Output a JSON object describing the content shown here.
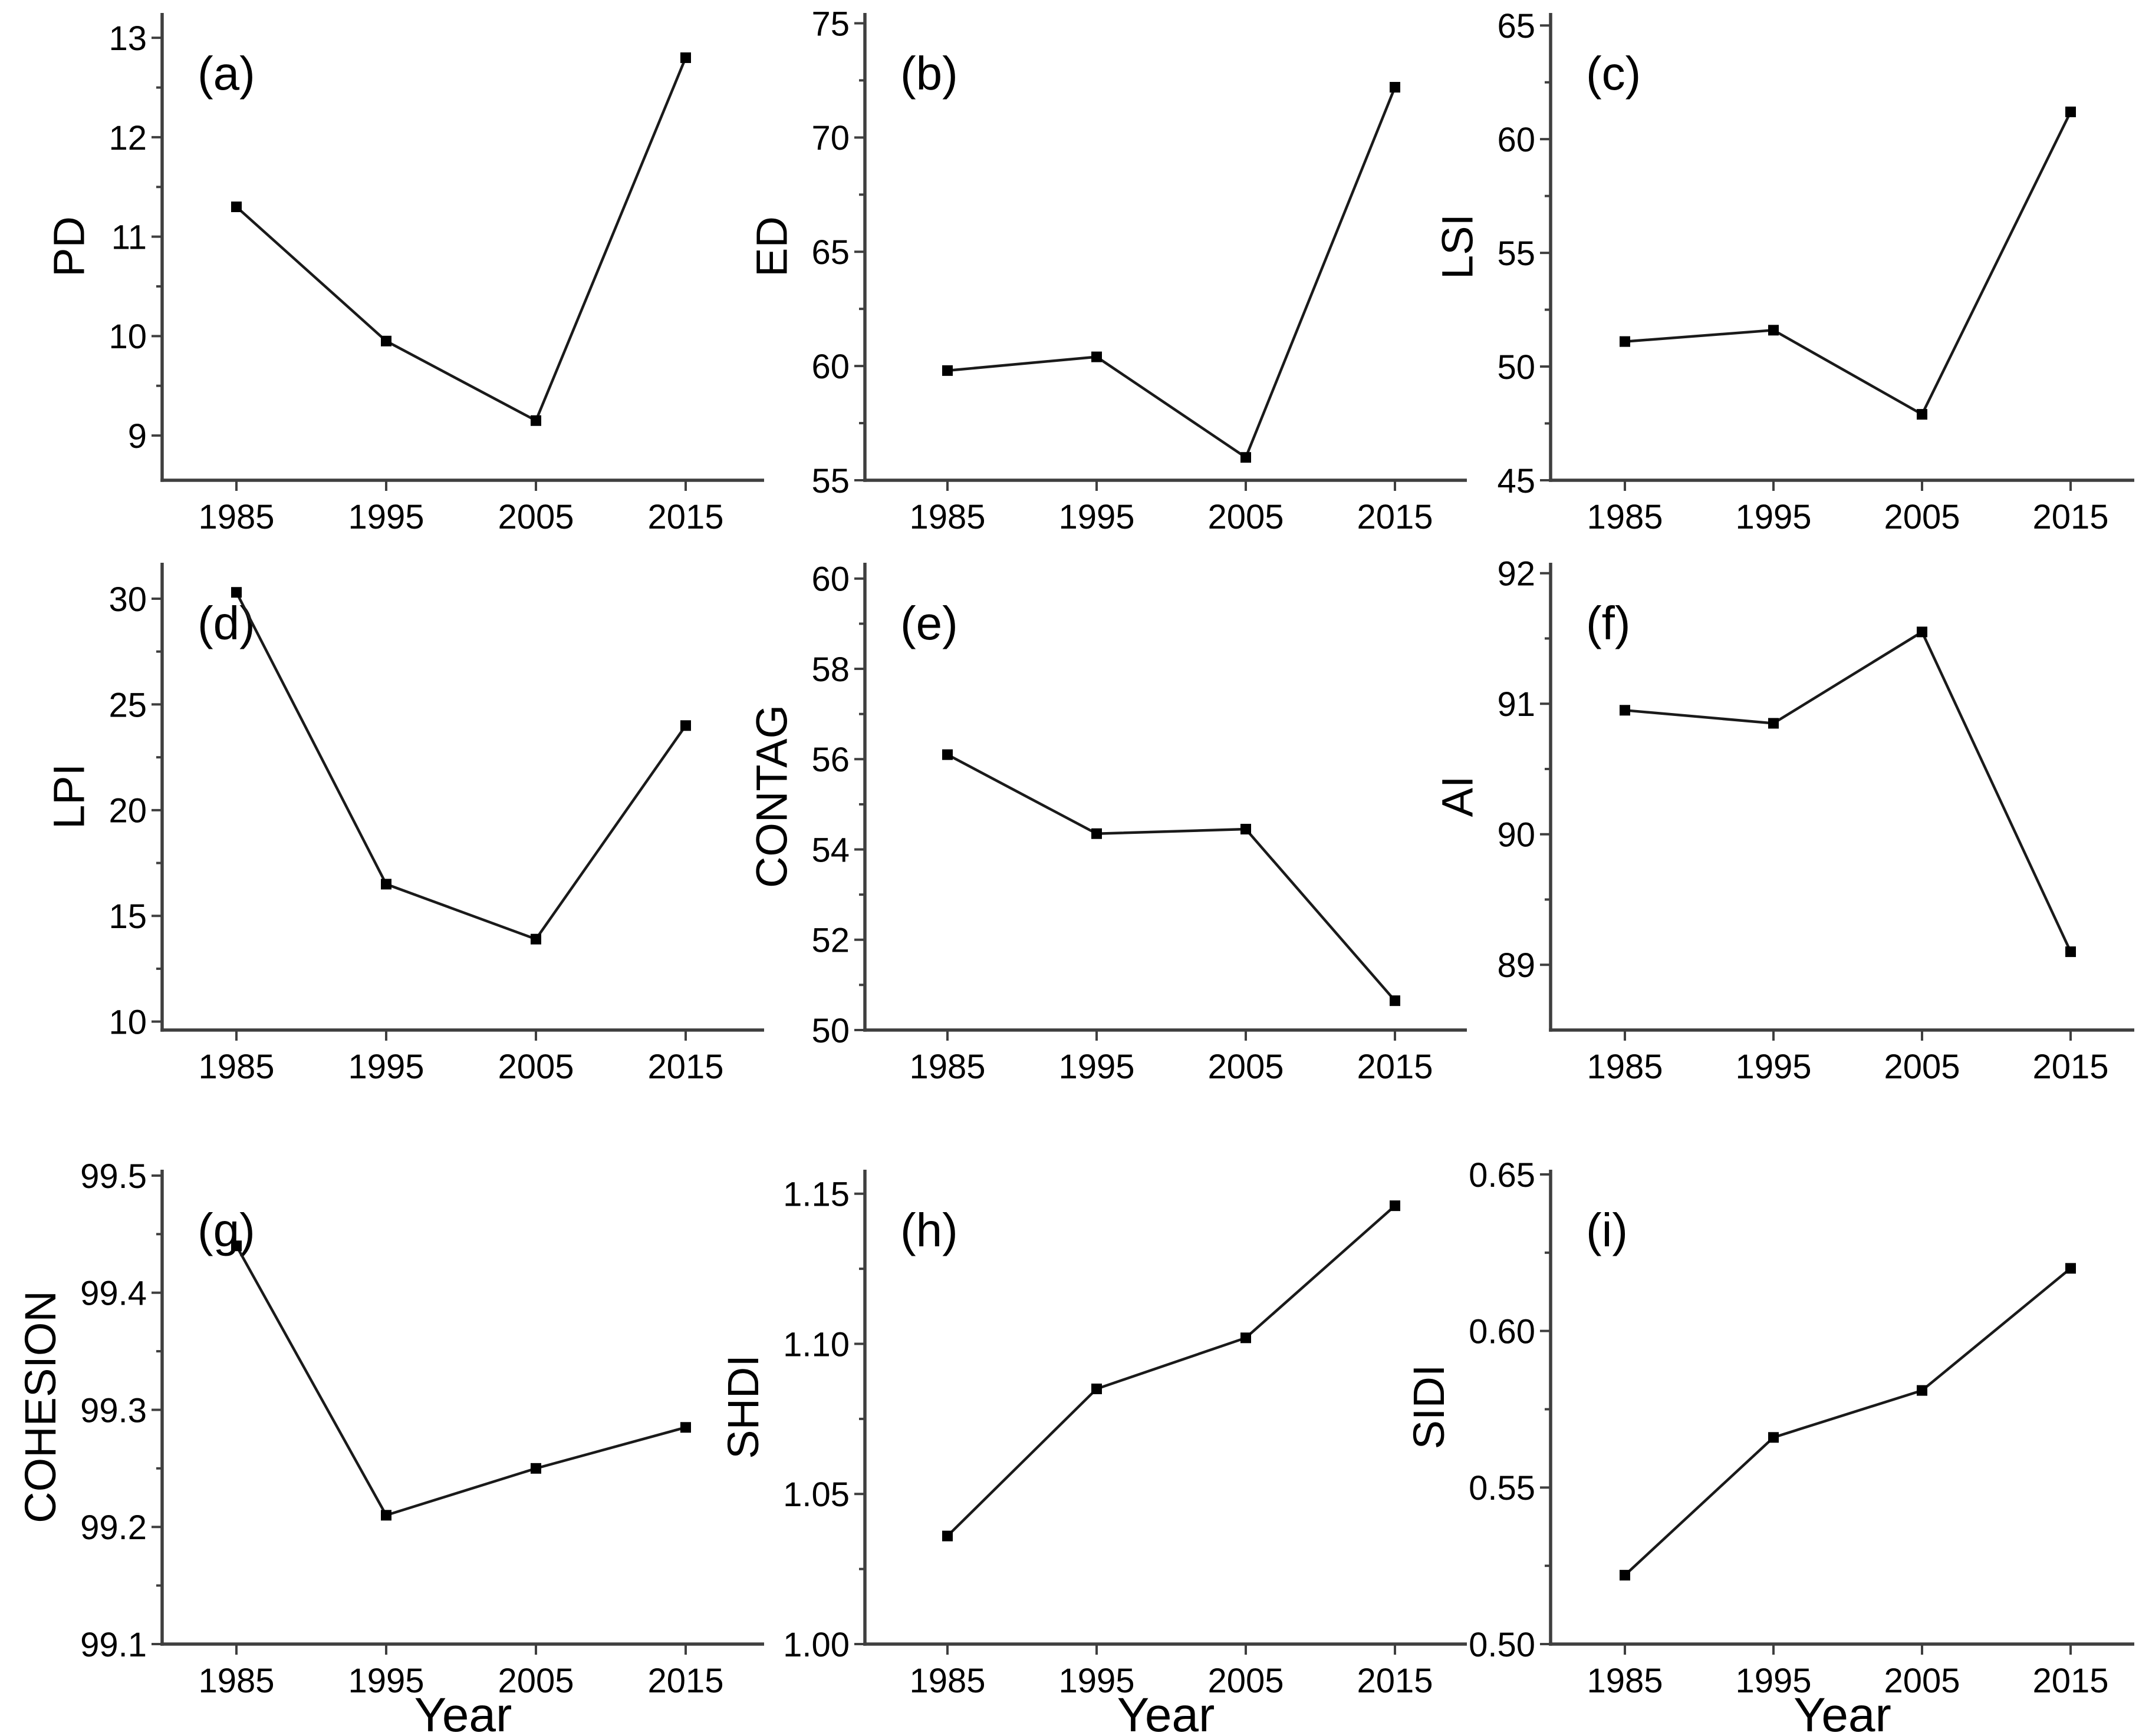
{
  "figure": {
    "background": "#ffffff",
    "text_color": "#000000",
    "axis_color": "#3f3f3f",
    "line_color": "#1a1a1a",
    "marker_color": "#000000"
  },
  "chart_data": {
    "type": "line",
    "x": [
      1985,
      1995,
      2005,
      2015
    ],
    "x_tick_labels": [
      "1985",
      "1995",
      "2005",
      "2015"
    ],
    "xlim": [
      1980,
      2020
    ],
    "xlabel": "Year",
    "grid": false,
    "legend": "none",
    "marker": "filled-square",
    "panels": [
      {
        "letter": "(a)",
        "ylabel": "PD",
        "values": [
          11.3,
          9.95,
          9.15,
          12.8
        ],
        "ylim": [
          8.55,
          13.25
        ],
        "yticks": [
          9,
          10,
          11,
          12,
          13
        ],
        "minor_ticks": [
          9.5,
          10.5,
          11.5,
          12.5
        ],
        "decimals": 0
      },
      {
        "letter": "(b)",
        "ylabel": "ED",
        "values": [
          59.8,
          60.4,
          56.0,
          72.2
        ],
        "ylim": [
          55,
          75.45
        ],
        "yticks": [
          55,
          60,
          65,
          70,
          75
        ],
        "minor_ticks": [
          57.5,
          62.5,
          67.5,
          72.5
        ],
        "decimals": 0
      },
      {
        "letter": "(c)",
        "ylabel": "LSI",
        "values": [
          51.1,
          51.6,
          47.9,
          61.2
        ],
        "ylim": [
          45,
          65.55
        ],
        "yticks": [
          45,
          50,
          55,
          60,
          65
        ],
        "minor_ticks": [
          47.5,
          52.5,
          57.5,
          62.5
        ],
        "decimals": 0
      },
      {
        "letter": "(d)",
        "ylabel": "LPI",
        "values": [
          30.3,
          16.5,
          13.9,
          24.0
        ],
        "ylim": [
          9.6,
          31.7
        ],
        "yticks": [
          10,
          15,
          20,
          25,
          30
        ],
        "minor_ticks": [
          12.5,
          17.5,
          22.5,
          27.5
        ],
        "decimals": 0
      },
      {
        "letter": "(e)",
        "ylabel": "CONTAG",
        "values": [
          56.1,
          54.35,
          54.45,
          50.65
        ],
        "ylim": [
          50,
          60.35
        ],
        "yticks": [
          50,
          52,
          54,
          56,
          58,
          60
        ],
        "minor_ticks": [
          51,
          53,
          55,
          57,
          59
        ],
        "decimals": 0
      },
      {
        "letter": "(f)",
        "ylabel": "AI",
        "values": [
          90.95,
          90.85,
          91.55,
          89.1
        ],
        "ylim": [
          88.5,
          92.08
        ],
        "yticks": [
          89,
          90,
          91,
          92
        ],
        "minor_ticks": [
          89.5,
          90.5,
          91.5
        ],
        "decimals": 0
      },
      {
        "letter": "(g)",
        "ylabel": "COHESION",
        "values": [
          99.44,
          99.21,
          99.25,
          99.285
        ],
        "ylim": [
          99.1,
          99.505
        ],
        "yticks": [
          99.1,
          99.2,
          99.3,
          99.4,
          99.5
        ],
        "minor_ticks": [
          99.15,
          99.25,
          99.35,
          99.45
        ],
        "decimals": 1
      },
      {
        "letter": "(h)",
        "ylabel": "SHDI",
        "values": [
          1.036,
          1.085,
          1.102,
          1.146
        ],
        "ylim": [
          1.0,
          1.158
        ],
        "yticks": [
          1.0,
          1.05,
          1.1,
          1.15
        ],
        "minor_ticks": [
          1.025,
          1.075,
          1.125
        ],
        "decimals": 2
      },
      {
        "letter": "(i)",
        "ylabel": "SIDI",
        "values": [
          0.522,
          0.566,
          0.581,
          0.62
        ],
        "ylim": [
          0.5,
          0.6515
        ],
        "yticks": [
          0.5,
          0.55,
          0.6,
          0.65
        ],
        "minor_ticks": [
          0.525,
          0.575,
          0.625
        ],
        "decimals": 2
      }
    ]
  }
}
